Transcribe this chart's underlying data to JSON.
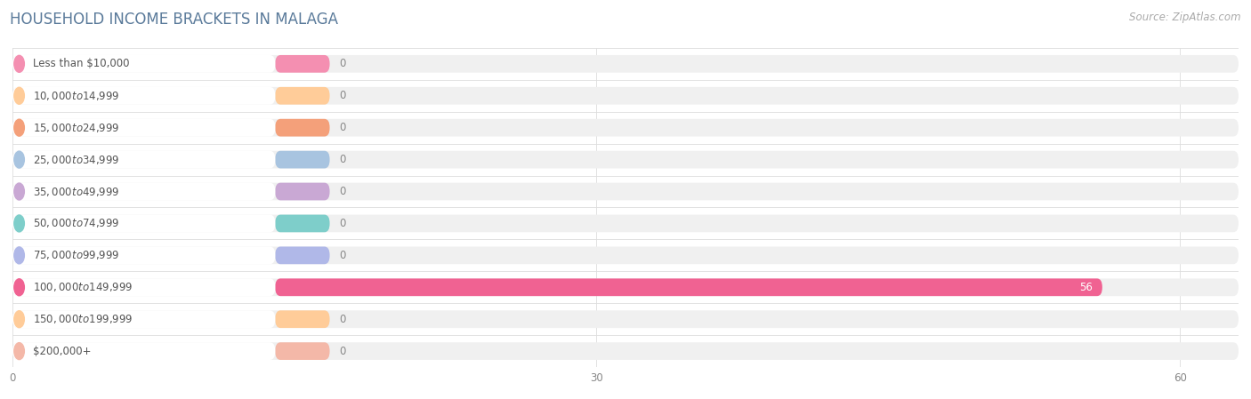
{
  "title": "HOUSEHOLD INCOME BRACKETS IN MALAGA",
  "source": "Source: ZipAtlas.com",
  "categories": [
    "Less than $10,000",
    "$10,000 to $14,999",
    "$15,000 to $24,999",
    "$25,000 to $34,999",
    "$35,000 to $49,999",
    "$50,000 to $74,999",
    "$75,000 to $99,999",
    "$100,000 to $149,999",
    "$150,000 to $199,999",
    "$200,000+"
  ],
  "values": [
    0,
    0,
    0,
    0,
    0,
    0,
    0,
    56,
    0,
    0
  ],
  "bar_colors": [
    "#f48fb1",
    "#ffcc99",
    "#f4a07a",
    "#a8c4e0",
    "#c9a8d4",
    "#7ececa",
    "#b0b8e8",
    "#f06292",
    "#ffcc99",
    "#f4b8a8"
  ],
  "label_bg_colors": [
    "#fce4ec",
    "#fff3e0",
    "#fce4ec",
    "#e3f2fd",
    "#f3e5f5",
    "#e0f7fa",
    "#ede7f6",
    "#fce4ec",
    "#fff3e0",
    "#fce4ec"
  ],
  "xlim_max": 63,
  "xticks": [
    0,
    30,
    60
  ],
  "background_color": "#ffffff",
  "row_bg_color": "#f0f0f0",
  "title_fontsize": 12,
  "source_fontsize": 8.5,
  "label_fontsize": 8.5,
  "value_fontsize": 8.5,
  "bar_height": 0.55,
  "value_label_color_default": "#888888",
  "value_label_color_highlight": "#ffffff",
  "title_color": "#5a7a9a",
  "label_text_color": "#555555"
}
